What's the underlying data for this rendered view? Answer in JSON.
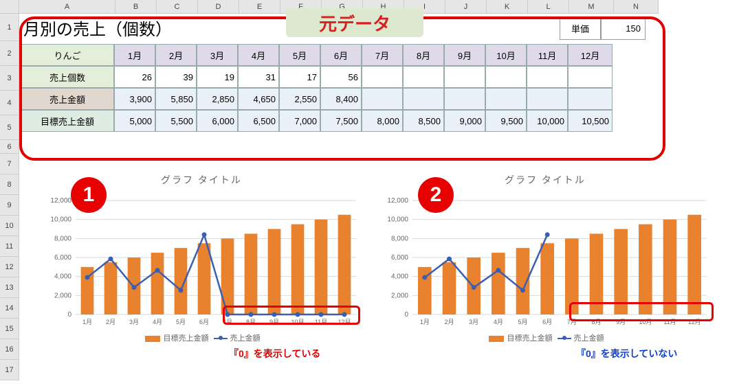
{
  "columns": [
    "A",
    "B",
    "C",
    "D",
    "E",
    "F",
    "G",
    "H",
    "I",
    "J",
    "K",
    "L",
    "M",
    "N"
  ],
  "rows": [
    "1",
    "2",
    "3",
    "4",
    "5",
    "6",
    "7",
    "8",
    "9",
    "10",
    "11",
    "12",
    "13",
    "14",
    "15",
    "16",
    "17"
  ],
  "title": "月別の売上（個数）",
  "callout": "元データ",
  "unit_label": "単価",
  "unit_value": "150",
  "table": {
    "corner": "りんご",
    "months": [
      "1月",
      "2月",
      "3月",
      "4月",
      "5月",
      "6月",
      "7月",
      "8月",
      "9月",
      "10月",
      "11月",
      "12月"
    ],
    "row1_label": "売上個数",
    "row1": [
      "26",
      "39",
      "19",
      "31",
      "17",
      "56",
      "",
      "",
      "",
      "",
      "",
      ""
    ],
    "row2_label": "売上金額",
    "row2": [
      "3,900",
      "5,850",
      "2,850",
      "4,650",
      "2,550",
      "8,400",
      "",
      "",
      "",
      "",
      "",
      ""
    ],
    "row3_label": "目標売上金額",
    "row3": [
      "5,000",
      "5,500",
      "6,000",
      "6,500",
      "7,000",
      "7,500",
      "8,000",
      "8,500",
      "9,000",
      "9,500",
      "10,000",
      "10,500"
    ]
  },
  "chart1": {
    "badge": "1",
    "title": "グラフ タイトル",
    "yticks": [
      "0",
      "2,000",
      "4,000",
      "6,000",
      "8,000",
      "10,000",
      "12,000"
    ],
    "xlabels": [
      "1月",
      "2月",
      "3月",
      "4月",
      "5月",
      "6月",
      "7月",
      "8月",
      "9月",
      "10月",
      "11月",
      "12月"
    ],
    "bars": [
      5000,
      5500,
      6000,
      6500,
      7000,
      7500,
      8000,
      8500,
      9000,
      9500,
      10000,
      10500
    ],
    "line": [
      3900,
      5850,
      2850,
      4650,
      2550,
      8400,
      0,
      0,
      0,
      0,
      0,
      0
    ],
    "legend_bar": "目標売上金額",
    "legend_line": "売上金額",
    "annotation": "『0』を表示している",
    "ymax": 12000,
    "bar_color": "#e8822f",
    "line_color": "#3b5fb0",
    "grid_color": "#d9d9d9"
  },
  "chart2": {
    "badge": "2",
    "title": "グラフ タイトル",
    "yticks": [
      "0",
      "2,000",
      "4,000",
      "6,000",
      "8,000",
      "10,000",
      "12,000"
    ],
    "xlabels": [
      "1月",
      "2月",
      "3月",
      "4月",
      "5月",
      "6月",
      "7月",
      "8月",
      "9月",
      "10月",
      "11月",
      "12月"
    ],
    "bars": [
      5000,
      5500,
      6000,
      6500,
      7000,
      7500,
      8000,
      8500,
      9000,
      9500,
      10000,
      10500
    ],
    "line": [
      3900,
      5850,
      2850,
      4650,
      2550,
      8400,
      null,
      null,
      null,
      null,
      null,
      null
    ],
    "legend_bar": "目標売上金額",
    "legend_line": "売上金額",
    "annotation": "『0』を表示していない",
    "ymax": 12000,
    "bar_color": "#e8822f",
    "line_color": "#3b5fb0",
    "grid_color": "#d9d9d9"
  }
}
